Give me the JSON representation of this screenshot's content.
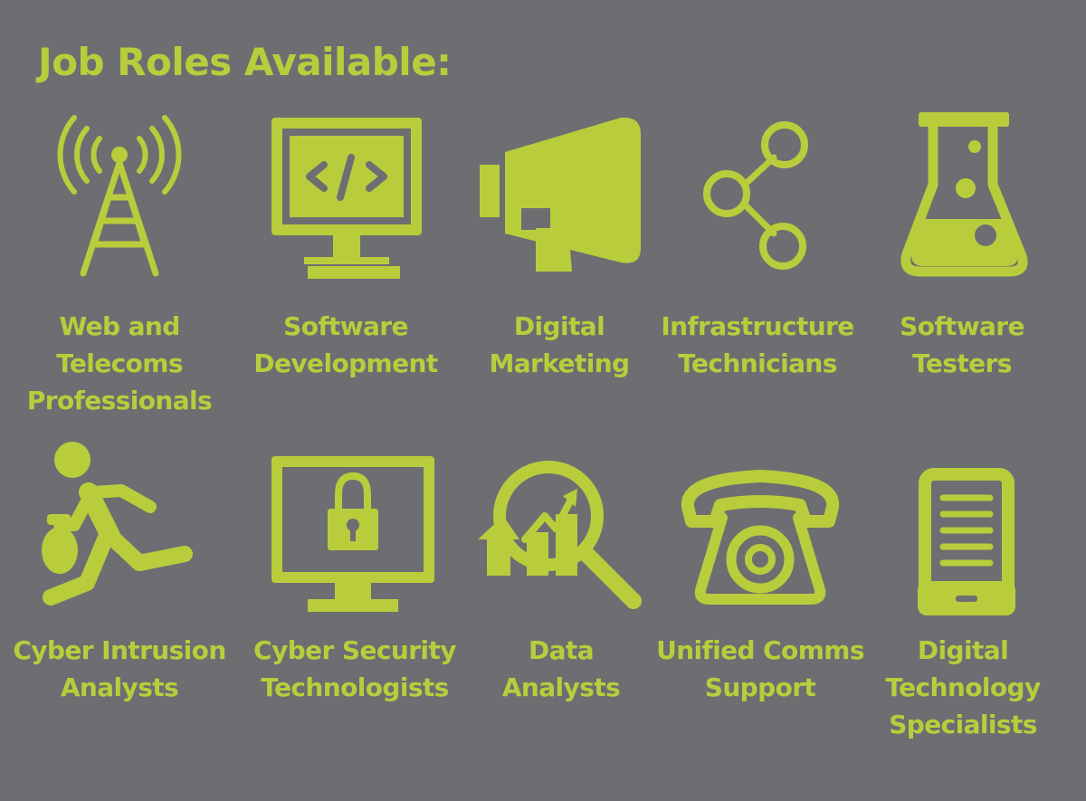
{
  "title": "Job Roles Available:",
  "accent_color": "#b9cd3c",
  "background_color": "#6d6e71",
  "roles": [
    {
      "icon": "radio-tower-icon",
      "label_lines": [
        "Web and",
        "Telecoms",
        "Professionals"
      ]
    },
    {
      "icon": "code-monitor-icon",
      "label_lines": [
        "Software",
        "Development"
      ]
    },
    {
      "icon": "megaphone-icon",
      "label_lines": [
        "Digital",
        "Marketing"
      ]
    },
    {
      "icon": "share-nodes-icon",
      "label_lines": [
        "Infrastructure",
        "Technicians"
      ]
    },
    {
      "icon": "flask-icon",
      "label_lines": [
        "Software",
        "Testers"
      ]
    },
    {
      "icon": "running-thief-icon",
      "label_lines": [
        "Cyber Intrusion",
        "Analysts"
      ]
    },
    {
      "icon": "padlock-monitor-icon",
      "label_lines": [
        "Cyber Security",
        "Technologists"
      ]
    },
    {
      "icon": "magnifier-chart-icon",
      "label_lines": [
        "Data",
        "Analysts"
      ]
    },
    {
      "icon": "telephone-icon",
      "label_lines": [
        "Unified Comms",
        "Support"
      ]
    },
    {
      "icon": "tablet-document-icon",
      "label_lines": [
        "Digital",
        "Technology",
        "Specialists"
      ]
    }
  ]
}
